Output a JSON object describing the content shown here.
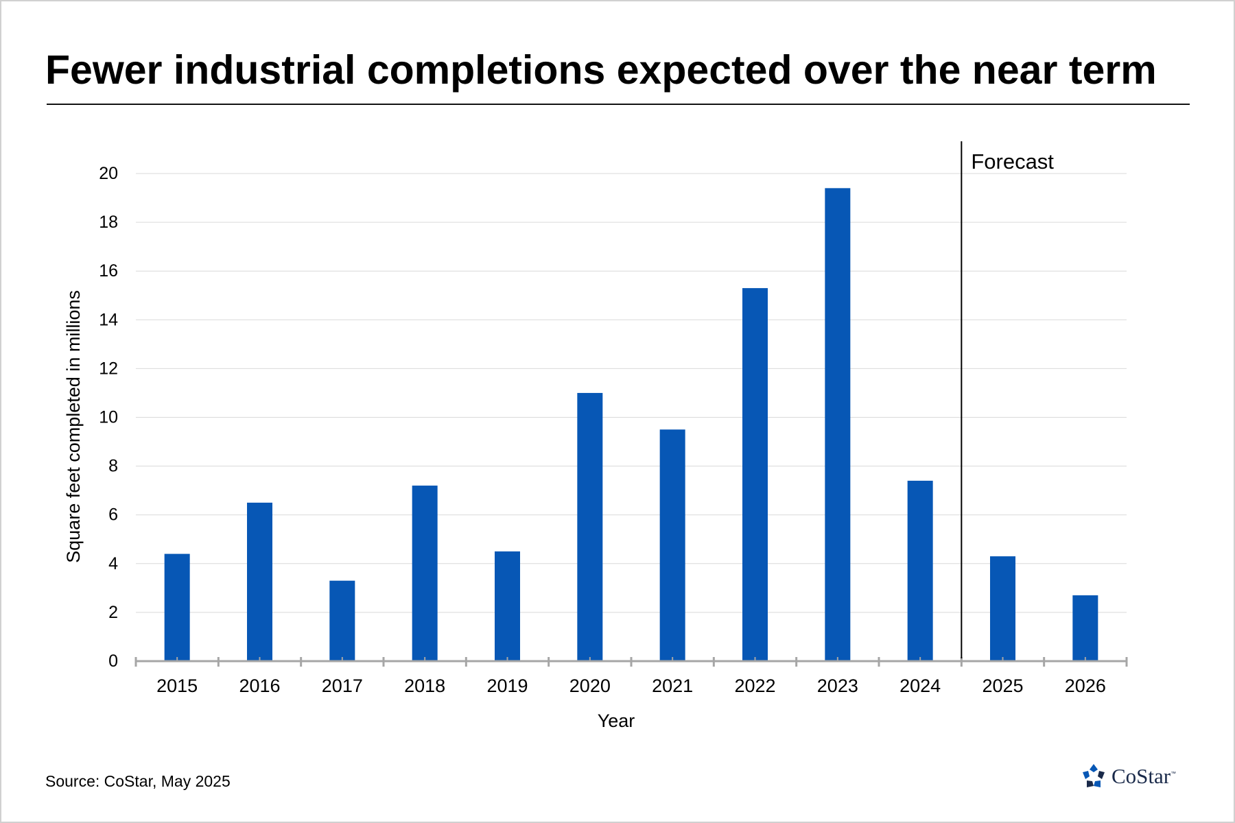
{
  "source_note": "Source: CoStar, May 2025",
  "logo": {
    "name": "CoStar",
    "tm": "™"
  },
  "colors": {
    "bar": "#0757B5",
    "grid": "#d9d9d9",
    "axis": "#a6a6a6",
    "text": "#000000"
  },
  "chart_data": {
    "type": "bar",
    "title": "Fewer industrial completions expected over the near term",
    "xlabel": "Year",
    "ylabel": "Square feet completed in millions",
    "ylim": [
      0,
      20
    ],
    "yticks": [
      0,
      2,
      4,
      6,
      8,
      10,
      12,
      14,
      16,
      18,
      20
    ],
    "grid": true,
    "categories": [
      "2015",
      "2016",
      "2017",
      "2018",
      "2019",
      "2020",
      "2021",
      "2022",
      "2023",
      "2024",
      "2025",
      "2026"
    ],
    "values": [
      4.4,
      6.5,
      3.3,
      7.2,
      4.5,
      11.0,
      9.5,
      15.3,
      19.4,
      7.4,
      4.3,
      2.7
    ],
    "annotation": {
      "text": "Forecast",
      "after_category": "2024"
    }
  }
}
